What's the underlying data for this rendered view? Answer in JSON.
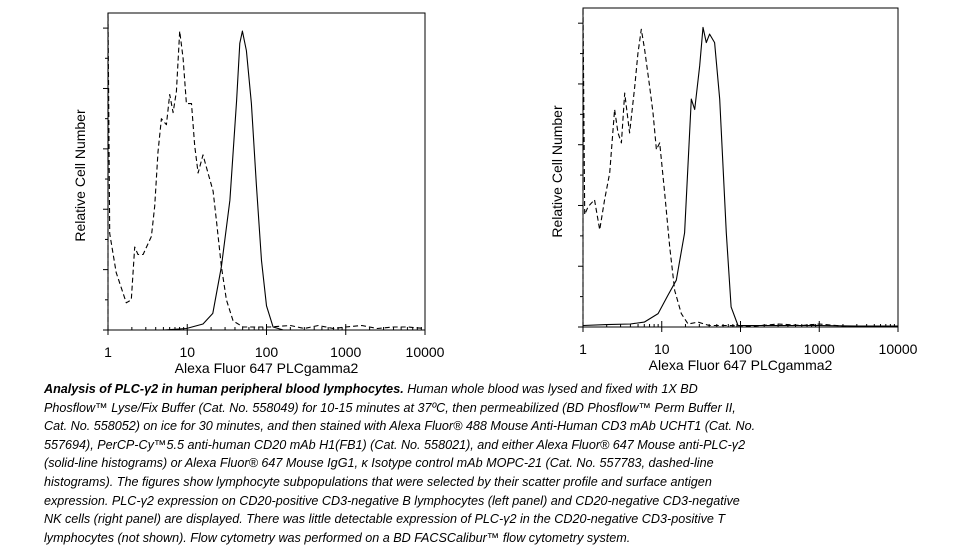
{
  "chart_data": [
    {
      "type": "line",
      "panel": "left",
      "title": "",
      "xlabel": "Alexa Fluor 647 PLCgamma2",
      "ylabel": "Relative Cell Number",
      "xscale": "log",
      "xlim": [
        1,
        10000
      ],
      "ylim": [
        0,
        105
      ],
      "xticks": [
        "1",
        "10",
        "100",
        "1000",
        "10000"
      ],
      "grid": false,
      "series": [
        {
          "name": "Alexa Fluor 647 Mouse IgG1 isotype control (dashed)",
          "style": "dashed",
          "x": [
            1,
            1,
            1.05,
            1.27,
            1.7,
            1.97,
            2.17,
            2.39,
            2.77,
            3.53,
            3.88,
            4.28,
            4.72,
            5.46,
            6.01,
            6.62,
            7.3,
            8.04,
            8.86,
            9.76,
            11.3,
            12.4,
            13.7,
            15.8,
            18.3,
            21.2,
            23.4,
            27,
            31.2,
            37.9,
            50.7,
            110,
            200,
            300,
            450,
            700,
            1000,
            1600,
            2500,
            4000,
            6000,
            10000
          ],
          "y": [
            0,
            105,
            32,
            19,
            9,
            10,
            27.5,
            25,
            25,
            31,
            41,
            59,
            70,
            68,
            78,
            72,
            79,
            99,
            90,
            75,
            75,
            61,
            52,
            58,
            52,
            46,
            36,
            21,
            10,
            3,
            1,
            1,
            1.5,
            0.5,
            1.5,
            0.5,
            1,
            1.5,
            0.5,
            1,
            1,
            0.5
          ]
        },
        {
          "name": "Alexa Fluor 647 Mouse anti-PLC-γ2 (solid)",
          "style": "solid",
          "x": [
            1,
            5,
            9.76,
            15.8,
            21,
            27,
            34.5,
            41.9,
            46,
            49.6,
            55.7,
            64.5,
            74.6,
            86.6,
            100,
            121,
            163,
            10000
          ],
          "y": [
            0,
            0,
            0.5,
            2,
            5.5,
            21,
            43,
            76,
            95,
            99,
            92.5,
            75,
            48,
            23,
            8,
            1,
            0,
            0
          ]
        }
      ]
    },
    {
      "type": "line",
      "panel": "right",
      "title": "",
      "xlabel": "Alexa Fluor 647 PLCgamma2",
      "ylabel": "Relative Cell Number",
      "xscale": "log",
      "xlim": [
        1,
        10000
      ],
      "ylim": [
        0,
        105
      ],
      "xticks": [
        "1",
        "10",
        "100",
        "1000",
        "10000"
      ],
      "grid": false,
      "series": [
        {
          "name": "Alexa Fluor 647 Mouse IgG1 isotype control (dashed)",
          "style": "dashed",
          "x": [
            1,
            1,
            1.05,
            1.16,
            1.4,
            1.63,
            1.88,
            2.18,
            2.52,
            2.78,
            3.07,
            3.38,
            3.91,
            4.53,
            4.98,
            5.5,
            6.06,
            7.03,
            7.75,
            8.54,
            9.41,
            10.9,
            12.6,
            14.6,
            17.7,
            21.6,
            28.8,
            40,
            69.5,
            150,
            300,
            600,
            1000,
            2000,
            10000
          ],
          "y": [
            0,
            105,
            37,
            39.6,
            41.9,
            32,
            41.9,
            50.7,
            71.6,
            63.9,
            60.6,
            77,
            63.9,
            79,
            90,
            98,
            91.4,
            79,
            70.5,
            58.4,
            60.6,
            44,
            26.4,
            12,
            4.4,
            1,
            1.6,
            0.5,
            0.5,
            0.3,
            1,
            0.5,
            1,
            0.3,
            0.3
          ]
        },
        {
          "name": "Alexa Fluor 647 Mouse anti-PLC-γ2 (solid)",
          "style": "solid",
          "x": [
            1,
            2,
            4,
            6,
            9,
            12,
            15.3,
            19.5,
            23.7,
            26.2,
            30.3,
            33.4,
            36.8,
            40.5,
            46.9,
            54.5,
            66,
            76,
            93,
            300,
            1000,
            3000,
            10000
          ],
          "y": [
            0.5,
            0.8,
            1,
            1.6,
            4.4,
            10.5,
            15.4,
            31,
            75,
            71.6,
            86,
            98.6,
            93.6,
            96.4,
            93.6,
            75,
            31,
            6.6,
            0.5,
            0.5,
            0.5,
            0.3,
            0.3
          ]
        }
      ]
    }
  ],
  "caption": {
    "title": "Analysis of PLC-γ2 in human peripheral blood lymphocytes.",
    "lines": [
      " Human whole blood was lysed and fixed with 1X BD",
      "Phosflow™ Lyse/Fix Buffer (Cat. No. 558049) for 10-15 minutes at 37ºC, then permeabilized (BD Phosflow™ Perm Buffer II,",
      "Cat. No. 558052) on ice for 30 minutes, and then stained with Alexa Fluor® 488 Mouse Anti-Human CD3 mAb UCHT1 (Cat. No.",
      "557694), PerCP-Cy™5.5 anti-human CD20 mAb H1(FB1) (Cat. No. 558021), and either Alexa Fluor® 647 Mouse anti-PLC-γ2",
      "(solid-line histograms) or Alexa Fluor® 647 Mouse IgG1, κ Isotype control mAb MOPC-21 (Cat. No. 557783, dashed-line",
      "histograms).  The figures show lymphocyte subpopulations that were selected by their scatter profile and surface antigen",
      "expression.  PLC-γ2 expression on CD20-positive CD3-negative B lymphocytes (left panel) and CD20-negative CD3-negative",
      "NK cells (right panel) are displayed.  There was little detectable expression of PLC-γ2 in the CD20-negative CD3-positive T",
      "lymphocytes (not shown).  Flow cytometry was performed on a BD FACSCalibur™ flow cytometry system."
    ]
  }
}
